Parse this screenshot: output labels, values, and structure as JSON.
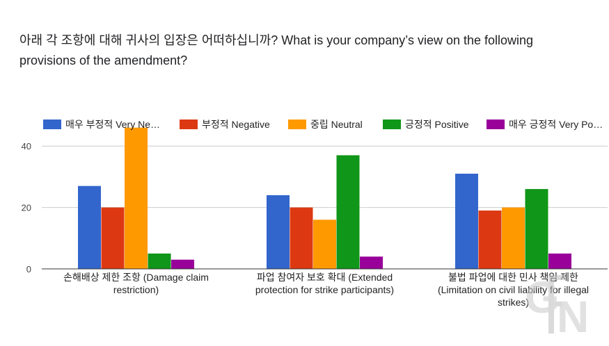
{
  "question": {
    "text": "아래 각 조항에 대해 귀사의 입장은 어떠하십니까? What is your company’s view on the following provisions of the amendment?"
  },
  "chart_data": {
    "type": "bar",
    "categories": [
      [
        "손해배상 제한 조항 (Damage claim",
        "restriction)"
      ],
      [
        "파업 참여자 보호 확대 (Extended",
        "protection for strike participants)"
      ],
      [
        "불법 파업에 대한 민사 책임 제한",
        "(Limitation on civil liability for illegal",
        "strikes)"
      ]
    ],
    "series": [
      {
        "name": "매우 부정적 Very Ne…",
        "color": "#3366cc",
        "values": [
          27,
          24,
          31
        ]
      },
      {
        "name": "부정적 Negative",
        "color": "#dc3912",
        "values": [
          20,
          20,
          19
        ]
      },
      {
        "name": "중립 Neutral",
        "color": "#ff9900",
        "values": [
          46,
          16,
          20
        ]
      },
      {
        "name": "긍정적 Positive",
        "color": "#109618",
        "values": [
          5,
          37,
          26
        ]
      },
      {
        "name": "매우 긍정적 Very Po…",
        "color": "#990099",
        "values": [
          3,
          4,
          5
        ]
      }
    ],
    "yticks": [
      0,
      20,
      40
    ],
    "ylim": [
      0,
      46
    ],
    "grid": true,
    "legend_position": "top"
  },
  "watermark": {
    "text": "GEN"
  }
}
